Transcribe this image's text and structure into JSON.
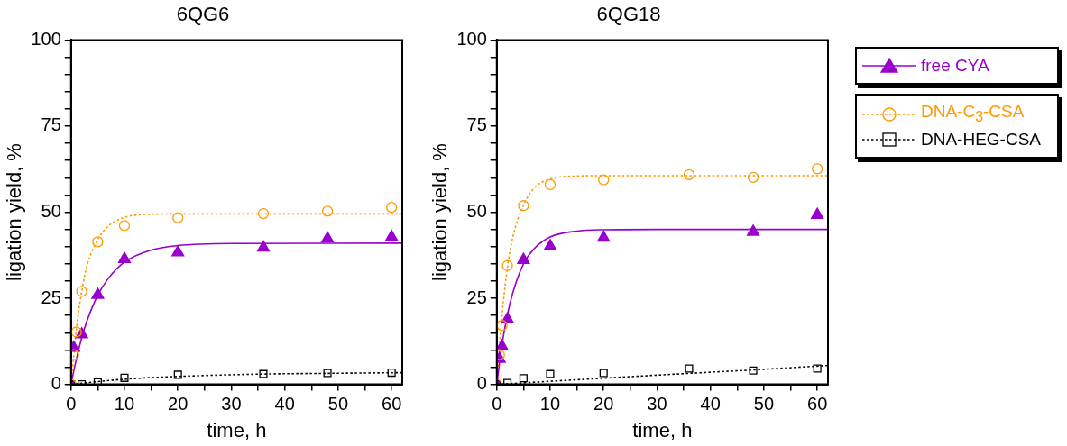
{
  "chart_data": [
    {
      "type": "scatter",
      "title": "6QG6",
      "xlabel": "time, h",
      "ylabel": "ligation yield, %",
      "xlim": [
        0,
        62
      ],
      "ylim": [
        0,
        100
      ],
      "xticks": [
        0,
        {
          "value": 5,
          "label": null
        },
        10,
        {
          "value": 15,
          "label": null
        },
        20,
        {
          "value": 25,
          "label": null
        },
        30,
        {
          "value": 35,
          "label": null
        },
        40,
        {
          "value": 45,
          "label": null
        },
        50,
        {
          "value": 55,
          "label": null
        },
        60
      ],
      "yticks": [
        0,
        {
          "value": 5,
          "label": null
        },
        {
          "value": 10,
          "label": null
        },
        {
          "value": 15,
          "label": null
        },
        {
          "value": 20,
          "label": null
        },
        25,
        {
          "value": 30,
          "label": null
        },
        {
          "value": 35,
          "label": null
        },
        {
          "value": 40,
          "label": null
        },
        {
          "value": 45,
          "label": null
        },
        50,
        {
          "value": 55,
          "label": null
        },
        {
          "value": 60,
          "label": null
        },
        {
          "value": 65,
          "label": null
        },
        {
          "value": 70,
          "label": null
        },
        75,
        {
          "value": 80,
          "label": null
        },
        {
          "value": 85,
          "label": null
        },
        {
          "value": 90,
          "label": null
        },
        {
          "value": 95,
          "label": null
        },
        100
      ],
      "grid": false,
      "legend": false,
      "series": [
        {
          "type": "line",
          "color": "#9900cc",
          "marker": "none",
          "line_style": "solid",
          "x": [
            0,
            1,
            2,
            3,
            5,
            7,
            10,
            15,
            20,
            30,
            62
          ],
          "values": [
            0,
            7.4,
            13.5,
            18.5,
            25.9,
            30.8,
            35.5,
            39,
            40.3,
            40.9,
            41
          ]
        },
        {
          "type": "line",
          "color": "#ff9900",
          "marker": "none",
          "line_style": "dotted",
          "x": [
            0,
            1,
            2,
            3,
            5,
            7,
            10,
            15,
            20,
            62
          ],
          "values": [
            0,
            16,
            27,
            34.5,
            42,
            46,
            48.5,
            49.4,
            49.5,
            49.5
          ]
        },
        {
          "type": "line",
          "color": "#000000",
          "marker": "none",
          "line_style": "dotted",
          "x": [
            0,
            10,
            20,
            36,
            48,
            62
          ],
          "values": [
            0,
            1.5,
            2.3,
            3,
            3.2,
            3.4
          ]
        },
        {
          "color": "#9900cc",
          "marker": "triangle",
          "x": [
            0,
            0.5,
            2,
            5,
            10,
            20,
            36,
            48,
            60
          ],
          "values": [
            0,
            10.6,
            14.5,
            26,
            36.4,
            38.3,
            39.7,
            42.3,
            42.8
          ]
        },
        {
          "color": "#ff9900",
          "marker": "circle",
          "x": [
            0,
            0.5,
            1,
            2,
            5,
            10,
            20,
            36,
            48,
            60
          ],
          "values": [
            0,
            8.6,
            15.2,
            27,
            41.4,
            46.1,
            48.4,
            49.6,
            50.3,
            51.4
          ]
        },
        {
          "color": "#000000",
          "marker": "square",
          "x": [
            0,
            2,
            5,
            10,
            20,
            36,
            48,
            60
          ],
          "values": [
            0,
            0,
            0.6,
            1.9,
            2.8,
            3,
            3.3,
            3.4
          ]
        }
      ]
    },
    {
      "type": "scatter",
      "title": "6QG18",
      "xlabel": "time, h",
      "ylabel": "ligation yield, %",
      "xlim": [
        0,
        62
      ],
      "ylim": [
        0,
        100
      ],
      "xticks": [
        0,
        {
          "value": 5,
          "label": null
        },
        10,
        {
          "value": 15,
          "label": null
        },
        20,
        {
          "value": 25,
          "label": null
        },
        30,
        {
          "value": 35,
          "label": null
        },
        40,
        {
          "value": 45,
          "label": null
        },
        50,
        {
          "value": 55,
          "label": null
        },
        60
      ],
      "yticks": [
        0,
        {
          "value": 5,
          "label": null
        },
        {
          "value": 10,
          "label": null
        },
        {
          "value": 15,
          "label": null
        },
        {
          "value": 20,
          "label": null
        },
        25,
        {
          "value": 30,
          "label": null
        },
        {
          "value": 35,
          "label": null
        },
        {
          "value": 40,
          "label": null
        },
        {
          "value": 45,
          "label": null
        },
        50,
        {
          "value": 55,
          "label": null
        },
        {
          "value": 60,
          "label": null
        },
        {
          "value": 65,
          "label": null
        },
        {
          "value": 70,
          "label": null
        },
        75,
        {
          "value": 80,
          "label": null
        },
        {
          "value": 85,
          "label": null
        },
        {
          "value": 90,
          "label": null
        },
        {
          "value": 95,
          "label": null
        },
        100
      ],
      "grid": false,
      "legend": "right",
      "series": [
        {
          "type": "line",
          "color": "#9900cc",
          "marker": "none",
          "line_style": "solid",
          "x": [
            0,
            1,
            2,
            3,
            5,
            7,
            10,
            15,
            20,
            30,
            62
          ],
          "values": [
            0,
            11.7,
            20.3,
            26.6,
            35,
            39.4,
            42.8,
            44.5,
            44.9,
            45,
            45
          ]
        },
        {
          "type": "line",
          "color": "#ff9900",
          "marker": "none",
          "line_style": "dotted",
          "x": [
            0,
            0.5,
            1,
            2,
            3,
            5,
            7,
            10,
            15,
            20,
            62
          ],
          "values": [
            0,
            11.1,
            20.4,
            34,
            42.7,
            52,
            57,
            59.6,
            60.5,
            60.6,
            60.6
          ]
        },
        {
          "type": "line",
          "color": "#000000",
          "marker": "none",
          "line_style": "dotted",
          "x": [
            0,
            10,
            20,
            36,
            48,
            62
          ],
          "values": [
            0,
            0.9,
            1.8,
            3.2,
            4.2,
            5.5
          ]
        },
        {
          "name": "free CYA",
          "color": "#9900cc",
          "marker": "triangle",
          "line_style": "solid",
          "x": [
            0,
            0.5,
            1,
            2,
            5,
            10,
            20,
            48,
            60
          ],
          "values": [
            0,
            7.4,
            11,
            18.9,
            36.1,
            40.1,
            42.6,
            44.3,
            49.2
          ]
        },
        {
          "name": "DNA-C$_{3}$-CSA",
          "color": "#ff9900",
          "marker": "circle",
          "line_style": "dotted",
          "x": [
            0,
            0.5,
            1,
            2,
            5,
            10,
            20,
            36,
            48,
            60
          ],
          "values": [
            0,
            8.6,
            17.1,
            34.5,
            51.9,
            58,
            59.4,
            60.9,
            60.1,
            62.6
          ]
        },
        {
          "name": "DNA-HEG-CSA",
          "color": "#000000",
          "marker": "square",
          "line_style": "dotted",
          "x": [
            0,
            2,
            5,
            10,
            20,
            36,
            48,
            60
          ],
          "values": [
            0,
            0.4,
            1.8,
            3,
            3.3,
            4.6,
            4,
            4.6
          ]
        }
      ]
    }
  ]
}
